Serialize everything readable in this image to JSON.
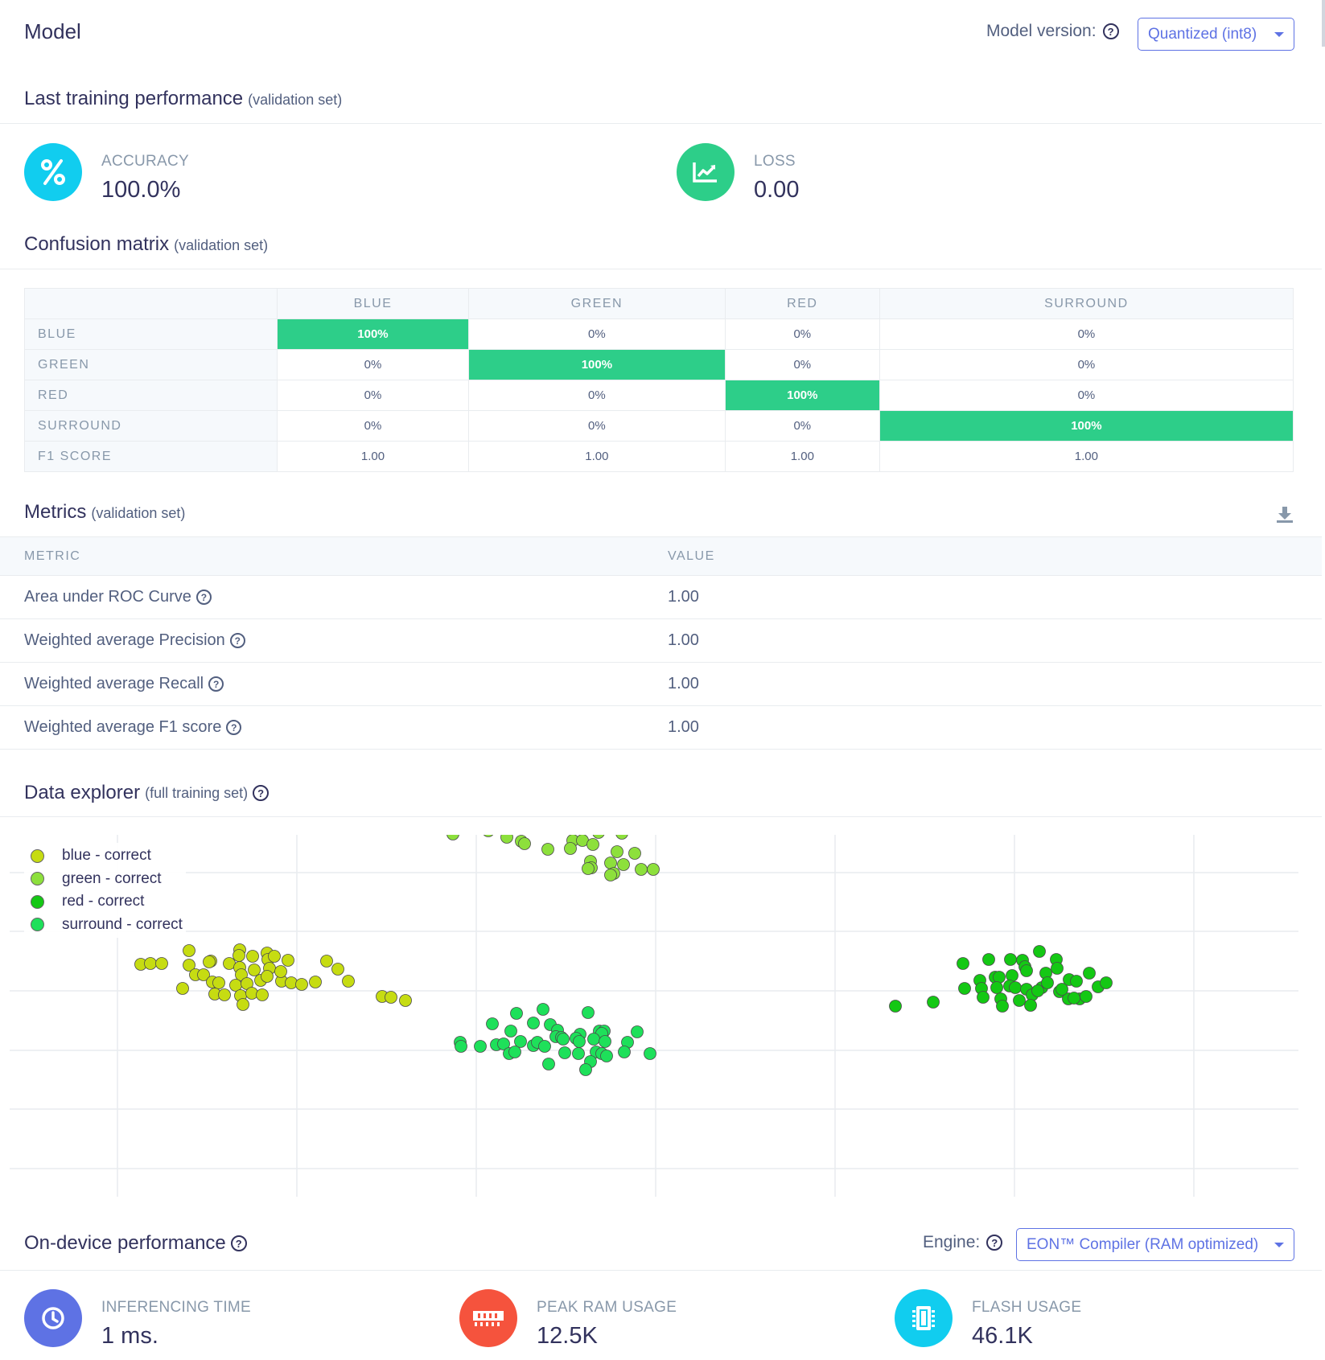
{
  "header": {
    "title": "Model",
    "version_label": "Model version:",
    "version_value": "Quantized (int8)"
  },
  "training": {
    "title": "Last training performance",
    "subtitle": "(validation set)",
    "accuracy": {
      "label": "ACCURACY",
      "value": "100.0%",
      "color": "#11cdef"
    },
    "loss": {
      "label": "LOSS",
      "value": "0.00",
      "color": "#2dce89"
    }
  },
  "confusion": {
    "title": "Confusion matrix",
    "subtitle": "(validation set)",
    "columns": [
      "BLUE",
      "GREEN",
      "RED",
      "SURROUND"
    ],
    "rows": [
      {
        "label": "BLUE",
        "cells": [
          "100%",
          "0%",
          "0%",
          "0%"
        ]
      },
      {
        "label": "GREEN",
        "cells": [
          "0%",
          "100%",
          "0%",
          "0%"
        ]
      },
      {
        "label": "RED",
        "cells": [
          "0%",
          "0%",
          "100%",
          "0%"
        ]
      },
      {
        "label": "SURROUND",
        "cells": [
          "0%",
          "0%",
          "0%",
          "100%"
        ]
      },
      {
        "label": "F1 SCORE",
        "cells": [
          "1.00",
          "1.00",
          "1.00",
          "1.00"
        ]
      }
    ],
    "highlight_color": "#2dce89"
  },
  "metrics": {
    "title": "Metrics",
    "subtitle": "(validation set)",
    "col_metric": "METRIC",
    "col_value": "VALUE",
    "rows": [
      {
        "name": "Area under ROC Curve",
        "value": "1.00"
      },
      {
        "name": "Weighted average Precision",
        "value": "1.00"
      },
      {
        "name": "Weighted average Recall",
        "value": "1.00"
      },
      {
        "name": "Weighted average F1 score",
        "value": "1.00"
      }
    ]
  },
  "explorer": {
    "title": "Data explorer",
    "subtitle": "(full training set)",
    "legend": [
      {
        "label": "blue - correct",
        "color": "#c6dc12"
      },
      {
        "label": "green - correct",
        "color": "#8de03c"
      },
      {
        "label": "red - correct",
        "color": "#14c814"
      },
      {
        "label": "surround - correct",
        "color": "#1ee05a"
      }
    ]
  },
  "chart_data": {
    "type": "scatter",
    "grid": true,
    "legend_placement": "top-left",
    "series": [
      {
        "name": "blue - correct",
        "color": "#c6dc12",
        "points": [
          [
            175,
            1199
          ],
          [
            187,
            1198
          ],
          [
            201,
            1198
          ],
          [
            235,
            1182
          ],
          [
            235,
            1200
          ],
          [
            262,
            1195
          ],
          [
            260,
            1196
          ],
          [
            285,
            1198
          ],
          [
            298,
            1181
          ],
          [
            297,
            1188
          ],
          [
            314,
            1189
          ],
          [
            332,
            1185
          ],
          [
            333,
            1193
          ],
          [
            341,
            1189
          ],
          [
            358,
            1194
          ],
          [
            406,
            1195
          ],
          [
            420,
            1205
          ],
          [
            243,
            1212
          ],
          [
            253,
            1212
          ],
          [
            298,
            1203
          ],
          [
            300,
            1212
          ],
          [
            316,
            1206
          ],
          [
            335,
            1204
          ],
          [
            350,
            1220
          ],
          [
            227,
            1229
          ],
          [
            264,
            1221
          ],
          [
            272,
            1222
          ],
          [
            293,
            1225
          ],
          [
            307,
            1223
          ],
          [
            324,
            1219
          ],
          [
            332,
            1214
          ],
          [
            349,
            1208
          ],
          [
            362,
            1222
          ],
          [
            375,
            1224
          ],
          [
            392,
            1221
          ],
          [
            433,
            1220
          ],
          [
            267,
            1236
          ],
          [
            279,
            1237
          ],
          [
            299,
            1238
          ],
          [
            313,
            1235
          ],
          [
            326,
            1237
          ],
          [
            302,
            1249
          ],
          [
            475,
            1239
          ],
          [
            486,
            1240
          ],
          [
            504,
            1244
          ]
        ]
      },
      {
        "name": "green - correct",
        "color": "#8de03c",
        "points": [
          [
            562,
            1010
          ],
          [
            574,
            1008
          ],
          [
            589,
            1007
          ],
          [
            600,
            1008
          ],
          [
            611,
            1011
          ],
          [
            620,
            1004
          ],
          [
            647,
            1010
          ],
          [
            651,
            1016
          ],
          [
            668,
            1014
          ],
          [
            730,
            1014
          ],
          [
            564,
            1033
          ],
          [
            607,
            1033
          ],
          [
            636,
            1027
          ],
          [
            639,
            1020
          ],
          [
            667,
            1025
          ],
          [
            689,
            1025
          ],
          [
            710,
            1020
          ],
          [
            720,
            1027
          ],
          [
            746,
            1025
          ],
          [
            773,
            1036
          ],
          [
            563,
            1037
          ],
          [
            630,
            1041
          ],
          [
            648,
            1046
          ],
          [
            652,
            1049
          ],
          [
            681,
            1056
          ],
          [
            712,
            1045
          ],
          [
            724,
            1045
          ],
          [
            737,
            1050
          ],
          [
            744,
            1035
          ],
          [
            767,
            1059
          ],
          [
            789,
            1061
          ],
          [
            709,
            1055
          ],
          [
            734,
            1071
          ],
          [
            735,
            1079
          ],
          [
            759,
            1073
          ],
          [
            763,
            1086
          ],
          [
            775,
            1075
          ],
          [
            797,
            1081
          ],
          [
            812,
            1081
          ],
          [
            731,
            1080
          ],
          [
            759,
            1088
          ]
        ]
      },
      {
        "name": "red - correct",
        "color": "#14c814",
        "points": [
          [
            1113,
            1251
          ],
          [
            1160,
            1246
          ],
          [
            1197,
            1198
          ],
          [
            1229,
            1193
          ],
          [
            1256,
            1193
          ],
          [
            1271,
            1194
          ],
          [
            1292,
            1183
          ],
          [
            1313,
            1193
          ],
          [
            1258,
            1213
          ],
          [
            1274,
            1202
          ],
          [
            1276,
            1207
          ],
          [
            1314,
            1204
          ],
          [
            1329,
            1218
          ],
          [
            1354,
            1210
          ],
          [
            1218,
            1219
          ],
          [
            1237,
            1215
          ],
          [
            1242,
            1215
          ],
          [
            1300,
            1210
          ],
          [
            1365,
            1227
          ],
          [
            1375,
            1222
          ],
          [
            1199,
            1229
          ],
          [
            1220,
            1229
          ],
          [
            1239,
            1228
          ],
          [
            1255,
            1226
          ],
          [
            1262,
            1228
          ],
          [
            1276,
            1230
          ],
          [
            1295,
            1228
          ],
          [
            1302,
            1222
          ],
          [
            1338,
            1220
          ],
          [
            1222,
            1240
          ],
          [
            1244,
            1242
          ],
          [
            1267,
            1244
          ],
          [
            1283,
            1237
          ],
          [
            1290,
            1232
          ],
          [
            1317,
            1233
          ],
          [
            1328,
            1242
          ],
          [
            1342,
            1242
          ],
          [
            1350,
            1239
          ],
          [
            1246,
            1251
          ],
          [
            1281,
            1250
          ],
          [
            1320,
            1230
          ],
          [
            1335,
            1241
          ]
        ]
      },
      {
        "name": "surround - correct",
        "color": "#1ee05a",
        "points": [
          [
            642,
            1260
          ],
          [
            675,
            1255
          ],
          [
            731,
            1259
          ],
          [
            612,
            1273
          ],
          [
            663,
            1272
          ],
          [
            684,
            1274
          ],
          [
            693,
            1281
          ],
          [
            691,
            1289
          ],
          [
            745,
            1282
          ],
          [
            751,
            1282
          ],
          [
            635,
            1282
          ],
          [
            721,
            1286
          ],
          [
            748,
            1285
          ],
          [
            572,
            1296
          ],
          [
            573,
            1301
          ],
          [
            597,
            1301
          ],
          [
            617,
            1299
          ],
          [
            626,
            1298
          ],
          [
            647,
            1295
          ],
          [
            663,
            1300
          ],
          [
            668,
            1296
          ],
          [
            677,
            1301
          ],
          [
            698,
            1290
          ],
          [
            716,
            1291
          ],
          [
            720,
            1295
          ],
          [
            738,
            1292
          ],
          [
            792,
            1283
          ],
          [
            780,
            1296
          ],
          [
            633,
            1310
          ],
          [
            640,
            1308
          ],
          [
            702,
            1309
          ],
          [
            719,
            1310
          ],
          [
            741,
            1308
          ],
          [
            748,
            1310
          ],
          [
            754,
            1313
          ],
          [
            776,
            1308
          ],
          [
            808,
            1310
          ],
          [
            682,
            1323
          ],
          [
            734,
            1320
          ],
          [
            728,
            1330
          ],
          [
            700,
            1292
          ],
          [
            752,
            1295
          ]
        ]
      }
    ]
  },
  "ondevice": {
    "title": "On-device performance",
    "engine_label": "Engine:",
    "engine_value": "EON™ Compiler (RAM optimized)",
    "inferencing": {
      "label": "INFERENCING TIME",
      "value": "1 ms.",
      "color": "#5e72e4"
    },
    "ram": {
      "label": "PEAK RAM USAGE",
      "value": "12.5K",
      "color": "#f5533d"
    },
    "flash": {
      "label": "FLASH USAGE",
      "value": "46.1K",
      "color": "#11cdef"
    }
  }
}
